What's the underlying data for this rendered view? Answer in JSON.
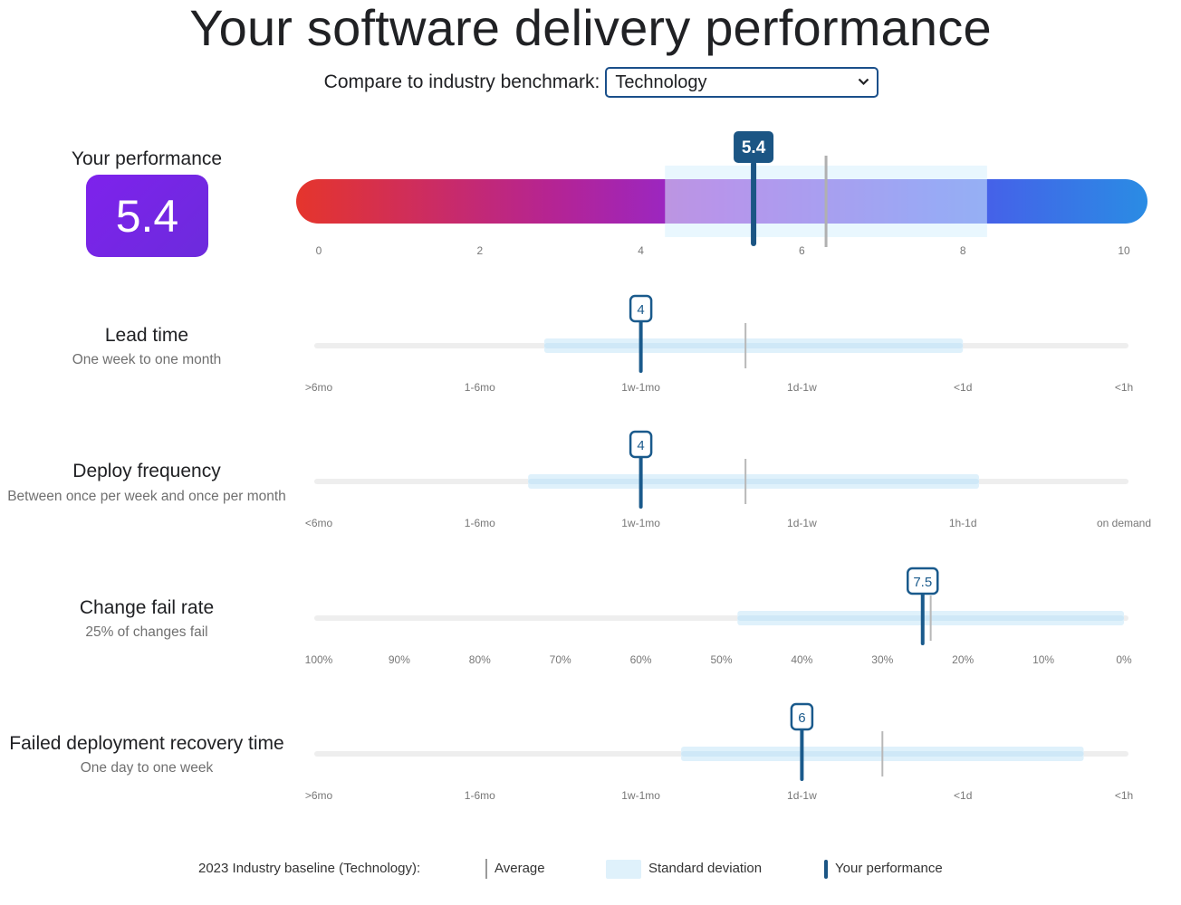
{
  "page": {
    "title": "Your software delivery performance",
    "benchmark_label": "Compare to industry benchmark:",
    "benchmark_value": "Technology"
  },
  "overall": {
    "title": "Your performance",
    "score_text": "5.4",
    "score": 5.4,
    "average": 6.3,
    "stddev_range": [
      4.3,
      8.3
    ],
    "ticks": [
      "0",
      "2",
      "4",
      "6",
      "8",
      "10"
    ],
    "scale_colors": [
      "#e33a2f",
      "#9a23c4",
      "#6d3ae6",
      "#2a6ee8",
      "#2a8ae3"
    ]
  },
  "metrics": [
    {
      "name": "lead-time",
      "title": "Lead time",
      "subtitle": "One week to one month",
      "value": 4,
      "value_text": "4",
      "average": 5.3,
      "stddev_range": [
        2.8,
        8.0
      ],
      "ticks": [
        ">6mo",
        "1-6mo",
        "1w-1mo",
        "1d-1w",
        "<1d",
        "<1h"
      ]
    },
    {
      "name": "deploy-frequency",
      "title": "Deploy frequency",
      "subtitle": "Between once per week and once per month",
      "value": 4,
      "value_text": "4",
      "average": 5.3,
      "stddev_range": [
        2.6,
        8.2
      ],
      "ticks": [
        "<6mo",
        "1-6mo",
        "1w-1mo",
        "1d-1w",
        "1h-1d",
        "on demand"
      ]
    },
    {
      "name": "change-fail-rate",
      "title": "Change fail rate",
      "subtitle": "25% of changes fail",
      "value": 7.5,
      "value_text": "7.5",
      "average": 7.6,
      "stddev_range": [
        5.2,
        10.0
      ],
      "ticks": [
        "100%",
        "90%",
        "80%",
        "70%",
        "60%",
        "50%",
        "40%",
        "30%",
        "20%",
        "10%",
        "0%"
      ]
    },
    {
      "name": "failed-deployment-recovery-time",
      "title": "Failed deployment recovery time",
      "subtitle": "One day to one week",
      "value": 6,
      "value_text": "6",
      "average": 7.0,
      "stddev_range": [
        4.5,
        9.5
      ],
      "ticks": [
        ">6mo",
        "1-6mo",
        "1w-1mo",
        "1d-1w",
        "<1d",
        "<1h"
      ]
    }
  ],
  "legend": {
    "baseline": "2023 Industry baseline (Technology):",
    "average": "Average",
    "stddev": "Standard deviation",
    "you": "Your performance"
  },
  "colors": {
    "marker": "#1a5a8c",
    "marker_dark": "#1b5584",
    "band": "#dff1fb",
    "band_strong": "#cfe8f7",
    "track": "#eeeeee",
    "average_line": "#b8b8b8",
    "score_box": "#7a24e8"
  }
}
